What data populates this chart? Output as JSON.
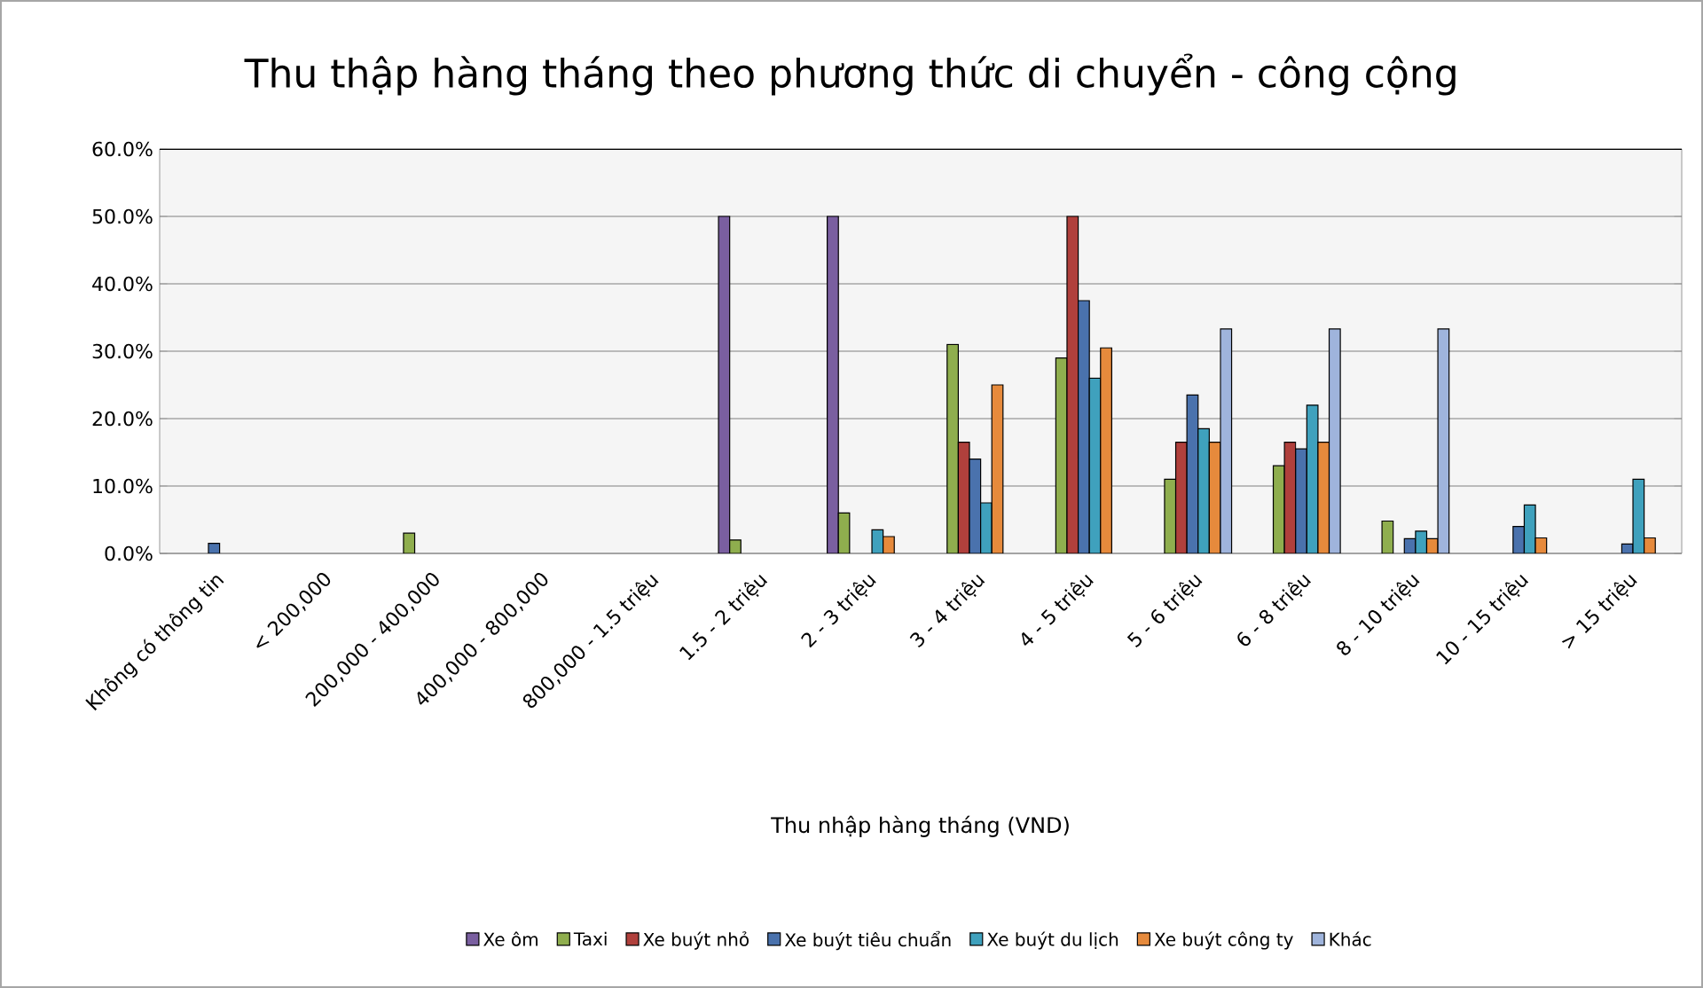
{
  "chart_data": {
    "type": "bar",
    "title": "Thu thập hàng tháng theo phương thức di chuyển - công cộng",
    "xlabel": "Thu nhập hàng tháng (VND)",
    "categories": [
      "Không có thông tin",
      "< 200,000",
      "200,000 - 400,000",
      "400,000 - 800,000",
      "800,000 - 1.5 triệu",
      "1.5 - 2 triệu",
      "2 - 3 triệu",
      "3 - 4  triệu",
      "4 - 5 triệu",
      "5 - 6 triệu",
      "6 - 8 triệu",
      "8 - 10 triệu",
      "10 - 15 triệu",
      "> 15 triệu"
    ],
    "ylim": [
      0,
      60
    ],
    "yticks": [
      {
        "value": 0,
        "label": "0.0%"
      },
      {
        "value": 10,
        "label": "10.0%"
      },
      {
        "value": 20,
        "label": "20.0%"
      },
      {
        "value": 30,
        "label": "30.0%"
      },
      {
        "value": 40,
        "label": "40.0%"
      },
      {
        "value": 50,
        "label": "50.0%"
      },
      {
        "value": 60,
        "label": "60.0%"
      }
    ],
    "grid": "y",
    "legend": "bottom",
    "series": [
      {
        "name": "Xe ôm",
        "color": "#7a5fa0",
        "values": [
          null,
          null,
          null,
          null,
          null,
          50,
          50,
          null,
          null,
          null,
          null,
          null,
          null,
          null
        ]
      },
      {
        "name": "Taxi",
        "color": "#8fae4e",
        "values": [
          null,
          null,
          3,
          null,
          null,
          2,
          6,
          31,
          29,
          11,
          13,
          4.8,
          null,
          null
        ]
      },
      {
        "name": "Xe buýt nhỏ",
        "color": "#b0403c",
        "values": [
          null,
          null,
          null,
          null,
          null,
          null,
          null,
          16.5,
          50,
          16.5,
          16.5,
          null,
          null,
          null
        ]
      },
      {
        "name": "Xe buýt tiêu chuẩn",
        "color": "#4a72ad",
        "values": [
          1.5,
          null,
          null,
          null,
          null,
          null,
          null,
          14,
          37.5,
          23.5,
          15.5,
          2.2,
          4,
          1.4
        ]
      },
      {
        "name": "Xe buýt du lịch",
        "color": "#3fa1bd",
        "values": [
          null,
          null,
          null,
          null,
          null,
          null,
          3.5,
          7.5,
          26,
          18.5,
          22,
          3.3,
          7.2,
          11
        ]
      },
      {
        "name": "Xe buýt công ty",
        "color": "#e68a3c",
        "values": [
          null,
          null,
          null,
          null,
          null,
          null,
          2.5,
          25,
          30.5,
          16.5,
          16.5,
          2.2,
          2.3,
          2.3
        ]
      },
      {
        "name": "Khác",
        "color": "#9fb4dc",
        "values": [
          null,
          null,
          null,
          null,
          null,
          null,
          null,
          null,
          null,
          33.3,
          33.3,
          33.3,
          null,
          null
        ]
      }
    ]
  }
}
